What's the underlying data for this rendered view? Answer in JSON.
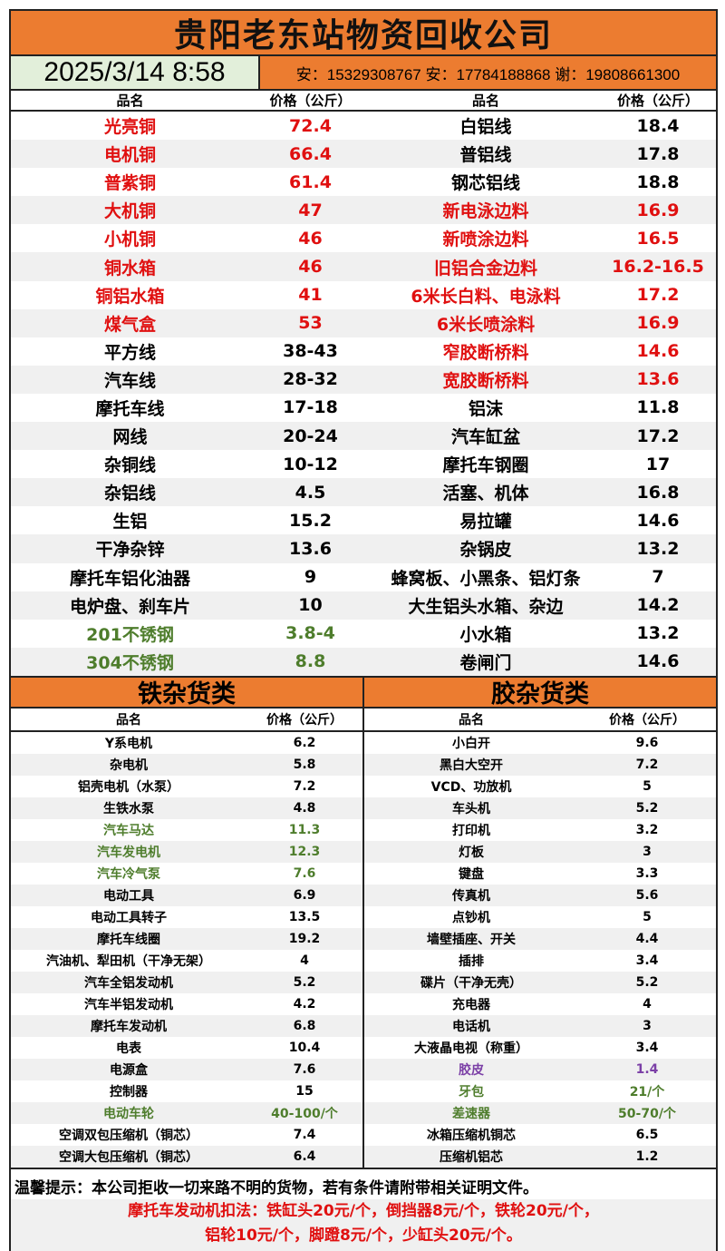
{
  "title": "贵阳老东站物资回收公司",
  "datetime": "2025/3/14 8:58",
  "phones": "安：15329308767 安：17784188868 谢：19808661300",
  "header": {
    "name": "品名",
    "price": "价格（公斤）"
  },
  "colors": {
    "orange": "#ec7c30",
    "red": "#e01010",
    "green": "#4e7d2c",
    "purple": "#7b3fa6",
    "date_bg": "#e2efda"
  },
  "top_rows": [
    {
      "n1": "光亮铜",
      "p1": "72.4",
      "c1": "red",
      "n2": "白铝线",
      "p2": "18.4",
      "c2": ""
    },
    {
      "n1": "电机铜",
      "p1": "66.4",
      "c1": "red",
      "n2": "普铝线",
      "p2": "17.8",
      "c2": ""
    },
    {
      "n1": "普紫铜",
      "p1": "61.4",
      "c1": "red",
      "n2": "钢芯铝线",
      "p2": "18.8",
      "c2": ""
    },
    {
      "n1": "大机铜",
      "p1": "47",
      "c1": "red",
      "n2": "新电泳边料",
      "p2": "16.9",
      "c2": "red"
    },
    {
      "n1": "小机铜",
      "p1": "46",
      "c1": "red",
      "n2": "新喷涂边料",
      "p2": "16.5",
      "c2": "red"
    },
    {
      "n1": "铜水箱",
      "p1": "46",
      "c1": "red",
      "n2": "旧铝合金边料",
      "p2": "16.2-16.5",
      "c2": "red"
    },
    {
      "n1": "铜铝水箱",
      "p1": "41",
      "c1": "red",
      "n2": "6米长白料、电泳料",
      "p2": "17.2",
      "c2": "red"
    },
    {
      "n1": "煤气盒",
      "p1": "53",
      "c1": "red",
      "n2": "6米长喷涂料",
      "p2": "16.9",
      "c2": "red"
    },
    {
      "n1": "平方线",
      "p1": "38-43",
      "c1": "",
      "n2": "窄胶断桥料",
      "p2": "14.6",
      "c2": "red"
    },
    {
      "n1": "汽车线",
      "p1": "28-32",
      "c1": "",
      "n2": "宽胶断桥料",
      "p2": "13.6",
      "c2": "red"
    },
    {
      "n1": "摩托车线",
      "p1": "17-18",
      "c1": "",
      "n2": "铝沫",
      "p2": "11.8",
      "c2": ""
    },
    {
      "n1": "网线",
      "p1": "20-24",
      "c1": "",
      "n2": "汽车缸盆",
      "p2": "17.2",
      "c2": ""
    },
    {
      "n1": "杂铜线",
      "p1": "10-12",
      "c1": "",
      "n2": "摩托车钢圈",
      "p2": "17",
      "c2": ""
    },
    {
      "n1": "杂铝线",
      "p1": "4.5",
      "c1": "",
      "n2": "活塞、机体",
      "p2": "16.8",
      "c2": ""
    },
    {
      "n1": "生铝",
      "p1": "15.2",
      "c1": "",
      "n2": "易拉罐",
      "p2": "14.6",
      "c2": ""
    },
    {
      "n1": "干净杂锌",
      "p1": "13.6",
      "c1": "",
      "n2": "杂锅皮",
      "p2": "13.2",
      "c2": ""
    },
    {
      "n1": "摩托车铝化油器",
      "p1": "9",
      "c1": "",
      "n2": "蜂窝板、小黑条、铝灯条",
      "p2": "7",
      "c2": ""
    },
    {
      "n1": "电炉盘、刹车片",
      "p1": "10",
      "c1": "",
      "n2": "大生铝头水箱、杂边",
      "p2": "14.2",
      "c2": ""
    },
    {
      "n1": "201不锈钢",
      "p1": "3.8-4",
      "c1": "green",
      "n2": "小水箱",
      "p2": "13.2",
      "c2": ""
    },
    {
      "n1": "304不锈钢",
      "p1": "8.8",
      "c1": "green",
      "n2": "卷闸门",
      "p2": "14.6",
      "c2": ""
    }
  ],
  "iron": {
    "title": "铁杂货类",
    "rows": [
      {
        "n": "Y系电机",
        "p": "6.2",
        "c": ""
      },
      {
        "n": "杂电机",
        "p": "5.8",
        "c": ""
      },
      {
        "n": "铝壳电机（水泵）",
        "p": "7.2",
        "c": ""
      },
      {
        "n": "生铁水泵",
        "p": "4.8",
        "c": ""
      },
      {
        "n": "汽车马达",
        "p": "11.3",
        "c": "green"
      },
      {
        "n": "汽车发电机",
        "p": "12.3",
        "c": "green"
      },
      {
        "n": "汽车冷气泵",
        "p": "7.6",
        "c": "green"
      },
      {
        "n": "电动工具",
        "p": "6.9",
        "c": ""
      },
      {
        "n": "电动工具转子",
        "p": "13.5",
        "c": ""
      },
      {
        "n": "摩托车线圈",
        "p": "19.2",
        "c": ""
      },
      {
        "n": "汽油机、犁田机（干净无架）",
        "p": "4",
        "c": ""
      },
      {
        "n": "汽车全铝发动机",
        "p": "5.2",
        "c": ""
      },
      {
        "n": "汽车半铝发动机",
        "p": "4.2",
        "c": ""
      },
      {
        "n": "摩托车发动机",
        "p": "6.8",
        "c": ""
      },
      {
        "n": "电表",
        "p": "10.4",
        "c": ""
      },
      {
        "n": "电源盒",
        "p": "7.6",
        "c": ""
      },
      {
        "n": "控制器",
        "p": "15",
        "c": ""
      },
      {
        "n": "电动车轮",
        "p": "40-100/个",
        "c": "green"
      },
      {
        "n": "空调双包压缩机（铜芯）",
        "p": "7.4",
        "c": ""
      },
      {
        "n": "空调大包压缩机（铜芯）",
        "p": "6.4",
        "c": ""
      }
    ]
  },
  "plastic": {
    "title": "胶杂货类",
    "rows": [
      {
        "n": "小白开",
        "p": "9.6",
        "c": ""
      },
      {
        "n": "黑白大空开",
        "p": "7.2",
        "c": ""
      },
      {
        "n": "VCD、功放机",
        "p": "5",
        "c": ""
      },
      {
        "n": "车头机",
        "p": "5.2",
        "c": ""
      },
      {
        "n": "打印机",
        "p": "3.2",
        "c": ""
      },
      {
        "n": "灯板",
        "p": "3",
        "c": ""
      },
      {
        "n": "键盘",
        "p": "3.3",
        "c": ""
      },
      {
        "n": "传真机",
        "p": "5.6",
        "c": ""
      },
      {
        "n": "点钞机",
        "p": "5",
        "c": ""
      },
      {
        "n": "墙壁插座、开关",
        "p": "4.4",
        "c": ""
      },
      {
        "n": "插排",
        "p": "3.4",
        "c": ""
      },
      {
        "n": "碟片（干净无壳）",
        "p": "5.2",
        "c": ""
      },
      {
        "n": "充电器",
        "p": "4",
        "c": ""
      },
      {
        "n": "电话机",
        "p": "3",
        "c": ""
      },
      {
        "n": "大液晶电视（称重）",
        "p": "3.4",
        "c": ""
      },
      {
        "n": "胶皮",
        "p": "1.4",
        "c": "purple"
      },
      {
        "n": "牙包",
        "p": "21/个",
        "c": "green"
      },
      {
        "n": "差速器",
        "p": "50-70/个",
        "c": "green"
      },
      {
        "n": "冰箱压缩机铜芯",
        "p": "6.5",
        "c": ""
      },
      {
        "n": "压缩机铝芯",
        "p": "1.2",
        "c": ""
      }
    ]
  },
  "footer": {
    "tip": "温馨提示：本公司拒收一切来路不明的货物，若有条件请附带相关证明文件。",
    "rule_line1": "摩托车发动机扣法：铁缸头20元/个，倒挡器8元/个，铁轮20元/个，",
    "rule_line2": "铝轮10元/个，脚蹬8元/个，少缸头20元/个。"
  }
}
